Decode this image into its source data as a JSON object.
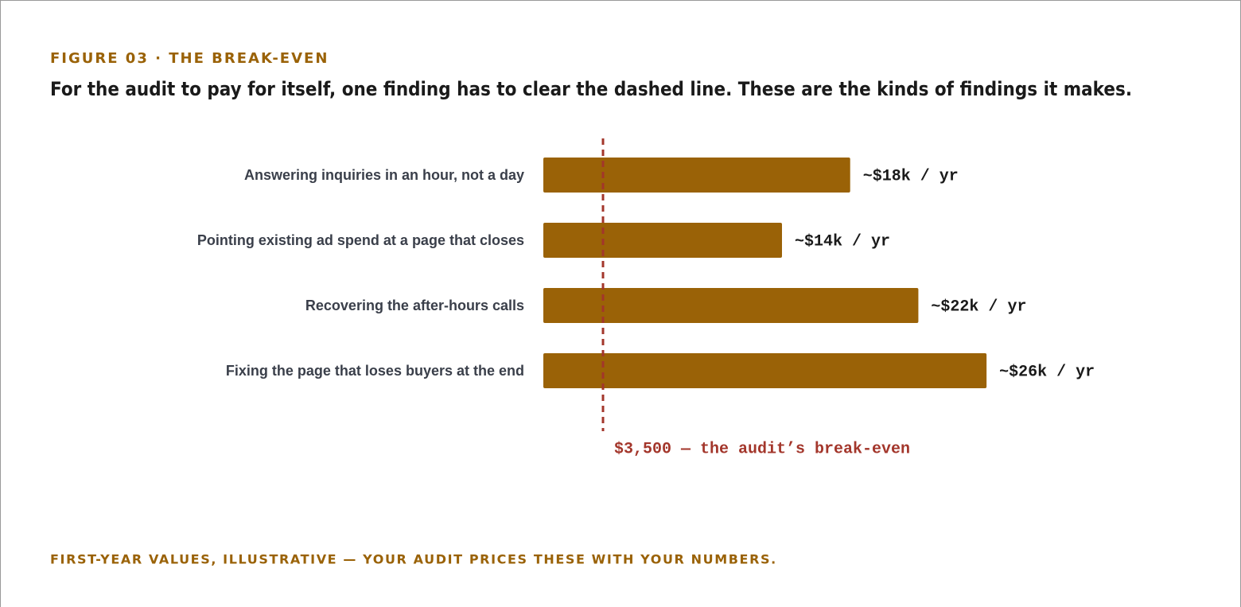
{
  "chart_data": {
    "type": "bar",
    "orientation": "horizontal",
    "kicker": "FIGURE 03 · THE BREAK-EVEN",
    "title": "For the audit to pay for itself, one finding has to clear the dashed line. These are the kinds of findings it makes.",
    "categories": [
      "Answering inquiries in an hour, not a day",
      "Pointing existing ad spend at a page that closes",
      "Recovering the after-hours calls",
      "Fixing the page that loses buyers at the end"
    ],
    "values": [
      18000,
      14000,
      22000,
      26000
    ],
    "value_labels": [
      "~$18k / yr",
      "~$14k / yr",
      "~$22k / yr",
      "~$26k / yr"
    ],
    "color": "#9a6207",
    "xlim": [
      0,
      35000
    ],
    "threshold": {
      "value": 3500,
      "label": "$3,500 — the audit’s break-even",
      "color": "#a3362b"
    },
    "footnote": "FIRST-YEAR VALUES, ILLUSTRATIVE — YOUR AUDIT PRICES THESE WITH YOUR NUMBERS."
  }
}
